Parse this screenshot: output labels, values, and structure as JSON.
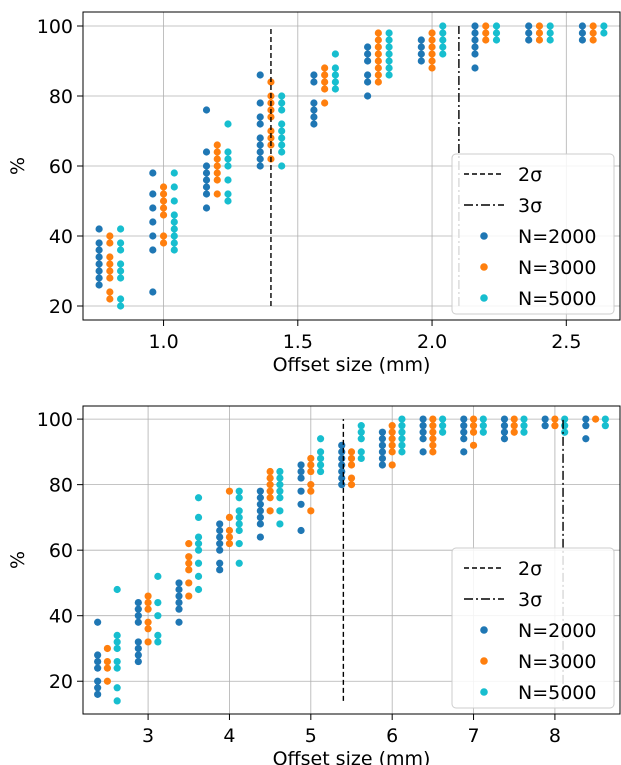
{
  "chart_data": [
    {
      "type": "scatter",
      "title": "",
      "xlabel": "Offset size (mm)",
      "ylabel": "%",
      "xlim": [
        0.7,
        2.7
      ],
      "ylim": [
        16,
        104
      ],
      "xticks": [
        1.0,
        1.5,
        2.0,
        2.5
      ],
      "xtick_labels": [
        "1.0",
        "1.5",
        "2.0",
        "2.5"
      ],
      "yticks": [
        20,
        40,
        60,
        80,
        100
      ],
      "ytick_labels": [
        "20",
        "40",
        "60",
        "80",
        "100"
      ],
      "grid": true,
      "legend_position": "lower-right",
      "vlines": [
        {
          "name": "2σ",
          "x": 1.4,
          "style": "dashed",
          "y_range": [
            20,
            100
          ]
        },
        {
          "name": "3σ",
          "x": 2.1,
          "style": "dashdot",
          "y_range": [
            20,
            100
          ]
        }
      ],
      "series": [
        {
          "name": "N=2000",
          "color": "#1f77b4",
          "x_offset": -0.04,
          "x": [
            0.8,
            1.0,
            1.2,
            1.4,
            1.6,
            1.8,
            2.0,
            2.2,
            2.4,
            2.6
          ],
          "y": [
            [
              26,
              28,
              30,
              32,
              34,
              36,
              38,
              42
            ],
            [
              24,
              36,
              40,
              44,
              48,
              52,
              58
            ],
            [
              48,
              52,
              54,
              56,
              58,
              60,
              64,
              76
            ],
            [
              60,
              62,
              64,
              66,
              68,
              72,
              74,
              78,
              86
            ],
            [
              72,
              74,
              76,
              78,
              84,
              86
            ],
            [
              80,
              84,
              86,
              90,
              92,
              94
            ],
            [
              90,
              92,
              94,
              96
            ],
            [
              88,
              92,
              94,
              96,
              98,
              100
            ],
            [
              96,
              98,
              100
            ],
            [
              96,
              98,
              100
            ]
          ]
        },
        {
          "name": "N=3000",
          "color": "#ff7f0e",
          "x_offset": 0.0,
          "x": [
            0.8,
            1.0,
            1.2,
            1.4,
            1.6,
            1.8,
            2.0,
            2.2,
            2.4,
            2.6
          ],
          "y": [
            [
              22,
              24,
              28,
              30,
              32,
              34,
              38,
              40
            ],
            [
              38,
              40,
              46,
              48,
              50,
              52,
              54
            ],
            [
              52,
              56,
              58,
              60,
              62,
              64,
              66
            ],
            [
              62,
              66,
              68,
              70,
              74,
              76,
              78,
              80,
              84
            ],
            [
              78,
              82,
              84,
              86,
              88
            ],
            [
              84,
              86,
              88,
              90,
              92,
              94,
              96,
              98
            ],
            [
              88,
              90,
              92,
              94,
              96,
              98
            ],
            [
              96,
              98,
              100
            ],
            [
              96,
              98,
              100
            ],
            [
              96,
              98,
              100
            ]
          ]
        },
        {
          "name": "N=5000",
          "color": "#17becf",
          "x_offset": 0.04,
          "x": [
            0.8,
            1.0,
            1.2,
            1.4,
            1.6,
            1.8,
            2.0,
            2.2,
            2.4,
            2.6
          ],
          "y": [
            [
              20,
              22,
              28,
              30,
              32,
              36,
              38,
              42
            ],
            [
              36,
              38,
              40,
              42,
              44,
              46,
              50,
              54,
              58
            ],
            [
              50,
              52,
              56,
              60,
              62,
              64,
              72
            ],
            [
              60,
              64,
              66,
              68,
              70,
              72,
              76,
              78,
              80
            ],
            [
              82,
              84,
              86,
              88,
              92
            ],
            [
              86,
              88,
              90,
              92,
              94,
              96,
              98
            ],
            [
              92,
              94,
              96,
              98,
              100
            ],
            [
              96,
              98,
              100
            ],
            [
              96,
              98,
              100
            ],
            [
              98,
              100
            ]
          ]
        }
      ]
    },
    {
      "type": "scatter",
      "title": "",
      "xlabel": "Offset size (mm)",
      "ylabel": "%",
      "xlim": [
        2.2,
        8.8
      ],
      "ylim": [
        10,
        104
      ],
      "xticks": [
        3,
        4,
        5,
        6,
        7,
        8
      ],
      "xtick_labels": [
        "3",
        "4",
        "5",
        "6",
        "7",
        "8"
      ],
      "yticks": [
        20,
        40,
        60,
        80,
        100
      ],
      "ytick_labels": [
        "20",
        "40",
        "60",
        "80",
        "100"
      ],
      "grid": true,
      "legend_position": "lower-right",
      "vlines": [
        {
          "name": "2σ",
          "x": 5.4,
          "style": "dashed",
          "y_range": [
            14,
            100
          ]
        },
        {
          "name": "3σ",
          "x": 8.1,
          "style": "dashdot",
          "y_range": [
            14,
            100
          ]
        }
      ],
      "series": [
        {
          "name": "N=2000",
          "color": "#1f77b4",
          "x_offset": -0.12,
          "x": [
            2.5,
            3.0,
            3.5,
            4.0,
            4.5,
            5.0,
            5.5,
            6.0,
            6.5,
            7.0,
            7.5,
            8.0,
            8.5
          ],
          "y": [
            [
              16,
              18,
              20,
              24,
              26,
              28,
              38
            ],
            [
              26,
              28,
              30,
              32,
              38,
              40,
              42,
              44
            ],
            [
              38,
              42,
              44,
              46,
              48,
              50
            ],
            [
              54,
              56,
              60,
              62,
              64,
              66,
              68
            ],
            [
              64,
              68,
              70,
              72,
              74,
              76,
              78
            ],
            [
              66,
              74,
              78,
              82,
              84,
              86
            ],
            [
              80,
              82,
              84,
              86,
              88,
              90,
              92
            ],
            [
              86,
              88,
              90,
              92,
              94,
              96
            ],
            [
              90,
              94,
              96,
              98,
              100
            ],
            [
              90,
              94,
              96,
              98,
              100
            ],
            [
              94,
              96,
              98,
              100
            ],
            [
              98,
              100
            ],
            [
              94,
              98,
              100
            ]
          ]
        },
        {
          "name": "N=3000",
          "color": "#ff7f0e",
          "x_offset": 0.0,
          "x": [
            2.5,
            3.0,
            3.5,
            4.0,
            4.5,
            5.0,
            5.5,
            6.0,
            6.5,
            7.0,
            7.5,
            8.0,
            8.5
          ],
          "y": [
            [
              20,
              24,
              26,
              30
            ],
            [
              32,
              36,
              38,
              42,
              44,
              46
            ],
            [
              46,
              50,
              54,
              56,
              58,
              62
            ],
            [
              62,
              64,
              66,
              70,
              78
            ],
            [
              72,
              76,
              78,
              80,
              82,
              84
            ],
            [
              72,
              78,
              80,
              84,
              86,
              88
            ],
            [
              80,
              82,
              86,
              88,
              90
            ],
            [
              86,
              90,
              92,
              94,
              96,
              98
            ],
            [
              90,
              92,
              94,
              96,
              98,
              100
            ],
            [
              92,
              96,
              98,
              100
            ],
            [
              96,
              98,
              100
            ],
            [
              98,
              100
            ],
            [
              100
            ]
          ]
        },
        {
          "name": "N=5000",
          "color": "#17becf",
          "x_offset": 0.12,
          "x": [
            2.5,
            3.0,
            3.5,
            4.0,
            4.5,
            5.0,
            5.5,
            6.0,
            6.5,
            7.0,
            7.5,
            8.0,
            8.5
          ],
          "y": [
            [
              14,
              18,
              24,
              26,
              30,
              32,
              34,
              48
            ],
            [
              32,
              34,
              40,
              44,
              52
            ],
            [
              48,
              52,
              56,
              60,
              62,
              64,
              70,
              76
            ],
            [
              56,
              62,
              66,
              68,
              70,
              72,
              76,
              78
            ],
            [
              68,
              72,
              76,
              78,
              80,
              82,
              84
            ],
            [
              84,
              86,
              88,
              90,
              94
            ],
            [
              88,
              90,
              94,
              96,
              98
            ],
            [
              90,
              92,
              94,
              96,
              98,
              100
            ],
            [
              96,
              98,
              100
            ],
            [
              96,
              98,
              100
            ],
            [
              96,
              98,
              100
            ],
            [
              96,
              98,
              100
            ],
            [
              98,
              100
            ]
          ]
        }
      ]
    }
  ]
}
